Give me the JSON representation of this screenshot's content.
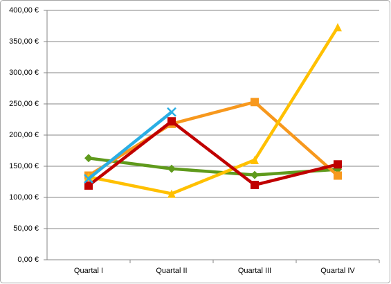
{
  "chart_data": {
    "type": "line",
    "categories": [
      "Quartal I",
      "Quartal II",
      "Quartal III",
      "Quartal IV"
    ],
    "series": [
      {
        "color": "#5f9a1c",
        "marker": "diamond",
        "values": [
          163,
          146,
          136,
          145
        ]
      },
      {
        "color": "#f7981d",
        "marker": "square",
        "values": [
          135,
          218,
          253,
          135
        ]
      },
      {
        "color": "#ffc000",
        "marker": "triangle",
        "values": [
          133,
          106,
          160,
          373
        ]
      },
      {
        "color": "#c00000",
        "marker": "square",
        "values": [
          119,
          222,
          120,
          153
        ]
      },
      {
        "color": "#2aaee4",
        "marker": "x",
        "values": [
          130,
          237,
          null,
          null
        ]
      }
    ],
    "ylim": [
      0,
      400
    ],
    "yticks": [
      {
        "value": 0,
        "label": "0,00 €"
      },
      {
        "value": 50,
        "label": "50,00 €"
      },
      {
        "value": 100,
        "label": "100,00 €"
      },
      {
        "value": 150,
        "label": "150,00 €"
      },
      {
        "value": 200,
        "label": "200,00 €"
      },
      {
        "value": 250,
        "label": "250,00 €"
      },
      {
        "value": 300,
        "label": "300,00 €"
      },
      {
        "value": 350,
        "label": "350,00 €"
      },
      {
        "value": 400,
        "label": "400,00 €"
      }
    ],
    "grid": true
  }
}
